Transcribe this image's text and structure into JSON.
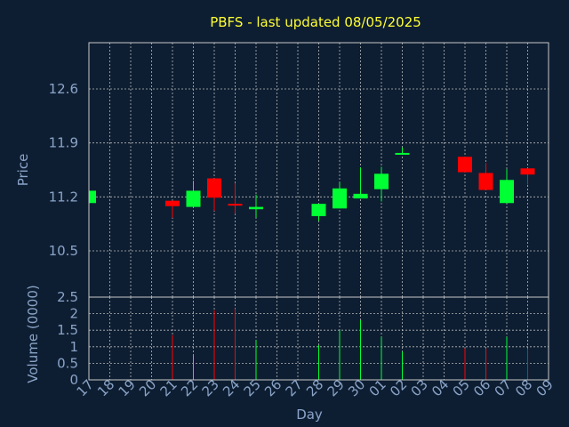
{
  "chart_data": {
    "type": "candlestick",
    "title": "PBFS - last updated 08/05/2025",
    "xlabel": "Day",
    "x_ticks": [
      "17",
      "18",
      "19",
      "20",
      "21",
      "22",
      "23",
      "24",
      "25",
      "26",
      "27",
      "28",
      "29",
      "30",
      "01",
      "02",
      "03",
      "04",
      "05",
      "06",
      "07",
      "08",
      "09"
    ],
    "price_panel": {
      "ylabel": "Price",
      "ylim": [
        9.9,
        13.2
      ],
      "y_ticks": [
        "10.5",
        "11.2",
        "11.9",
        "12.6"
      ],
      "y_tick_values": [
        10.5,
        11.2,
        11.9,
        12.6
      ],
      "grid": true
    },
    "volume_panel": {
      "ylabel": "Volume (0000)",
      "ylim": [
        0,
        2.5
      ],
      "y_ticks": [
        "0",
        "0.5",
        "1",
        "1.5",
        "2",
        "2.5"
      ],
      "y_tick_values": [
        0,
        0.5,
        1,
        1.5,
        2,
        2.5
      ],
      "grid": true
    },
    "up_color": "#00ff33",
    "down_color": "#ff0000",
    "candles": [
      {
        "day": "17",
        "open": 11.12,
        "close": 11.28,
        "high": 11.28,
        "low": 11.12,
        "volume": 0
      },
      {
        "day": "21",
        "open": 11.15,
        "close": 11.08,
        "high": 11.15,
        "low": 10.93,
        "volume": 1.35
      },
      {
        "day": "22",
        "open": 11.07,
        "close": 11.28,
        "high": 11.41,
        "low": 11.07,
        "volume": 0.75
      },
      {
        "day": "23",
        "open": 11.44,
        "close": 11.19,
        "high": 11.44,
        "low": 11.02,
        "volume": 2.1
      },
      {
        "day": "24",
        "open": 11.11,
        "close": 11.09,
        "high": 11.38,
        "low": 10.98,
        "volume": 2.15
      },
      {
        "day": "25",
        "open": 11.04,
        "close": 11.07,
        "high": 11.23,
        "low": 10.93,
        "volume": 1.2
      },
      {
        "day": "28",
        "open": 10.95,
        "close": 11.11,
        "high": 11.11,
        "low": 10.89,
        "volume": 1.05
      },
      {
        "day": "29",
        "open": 11.05,
        "close": 11.31,
        "high": 11.39,
        "low": 11.05,
        "volume": 1.5
      },
      {
        "day": "30",
        "open": 11.18,
        "close": 11.24,
        "high": 11.58,
        "low": 11.18,
        "volume": 1.8
      },
      {
        "day": "01",
        "open": 11.3,
        "close": 11.5,
        "high": 11.59,
        "low": 11.14,
        "volume": 1.3
      },
      {
        "day": "02",
        "open": 11.75,
        "close": 11.77,
        "high": 11.84,
        "low": 11.75,
        "volume": 0.85
      },
      {
        "day": "05",
        "open": 11.72,
        "close": 11.52,
        "high": 11.72,
        "low": 11.52,
        "volume": 0.95
      },
      {
        "day": "06",
        "open": 11.51,
        "close": 11.29,
        "high": 11.64,
        "low": 11.29,
        "volume": 0.95
      },
      {
        "day": "07",
        "open": 11.12,
        "close": 11.42,
        "high": 11.56,
        "low": 11.12,
        "volume": 1.3
      },
      {
        "day": "08",
        "open": 11.57,
        "close": 11.49,
        "high": 11.57,
        "low": 11.36,
        "volume": 0.95
      }
    ]
  }
}
